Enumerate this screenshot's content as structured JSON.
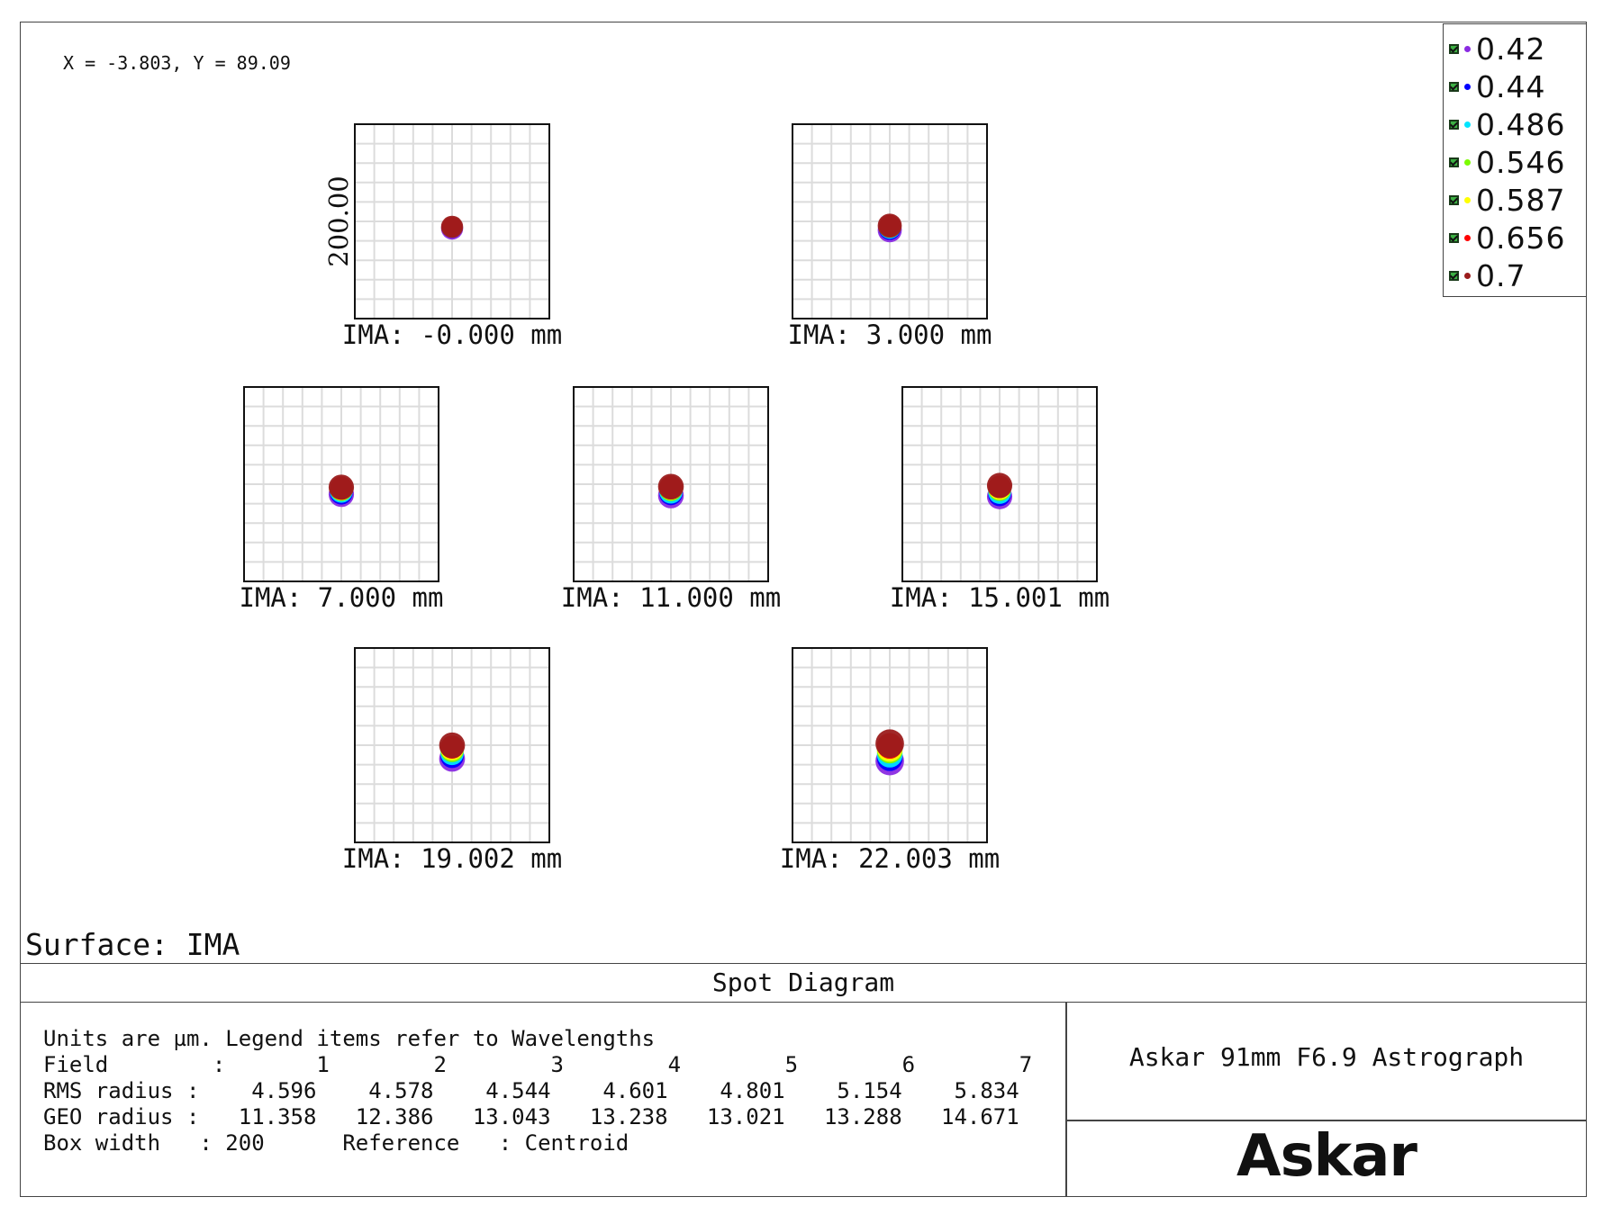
{
  "coord_readout": "X = -3.803, Y = 89.09",
  "surface_label": "Surface: IMA",
  "panel_title": "Spot Diagram",
  "system_name": "Askar 91mm F6.9 Astrograph",
  "logo_text": "Askar",
  "info_lines": [
    "Units are µm. Legend items refer to Wavelengths",
    "Field        :       1        2        3        4        5        6        7",
    "RMS radius :    4.596    4.578    4.544    4.601    4.801    5.154    5.834",
    "GEO radius :   11.358   12.386   13.043   13.238   13.021   13.288   14.671",
    "Box width   : 200      Reference   : Centroid"
  ],
  "legend": [
    {
      "label": "0.42",
      "color": "#8a2be2"
    },
    {
      "label": "0.44",
      "color": "#0000ff"
    },
    {
      "label": "0.486",
      "color": "#00e5ff"
    },
    {
      "label": "0.546",
      "color": "#7cfc00"
    },
    {
      "label": "0.587",
      "color": "#ffff00"
    },
    {
      "label": "0.656",
      "color": "#ff0000"
    },
    {
      "label": "0.7",
      "color": "#9b1c1c"
    }
  ],
  "chart_data": {
    "type": "scatter",
    "title": "Spot Diagram",
    "y_axis_label": "200.00",
    "units": "µm",
    "box_width": 200,
    "reference": "Centroid",
    "surface": "IMA",
    "wavelengths": [
      "0.42",
      "0.44",
      "0.486",
      "0.546",
      "0.587",
      "0.656",
      "0.7"
    ],
    "fields": [
      {
        "field": 1,
        "label": "IMA: -0.000 mm",
        "rms_radius": 4.596,
        "geo_radius": 11.358,
        "spot_offset_y": [
          -3,
          -2,
          -1,
          0,
          0,
          0,
          0
        ]
      },
      {
        "field": 2,
        "label": "IMA: 3.000 mm",
        "rms_radius": 4.578,
        "geo_radius": 12.386,
        "spot_offset_y": [
          -6,
          -4,
          -2,
          0,
          1,
          2,
          2
        ]
      },
      {
        "field": 3,
        "label": "IMA: 7.000 mm",
        "rms_radius": 4.544,
        "geo_radius": 13.043,
        "spot_offset_y": [
          -8,
          -6,
          -3,
          0,
          1,
          3,
          4
        ]
      },
      {
        "field": 4,
        "label": "IMA: 11.000 mm",
        "rms_radius": 4.601,
        "geo_radius": 13.238,
        "spot_offset_y": [
          -10,
          -7,
          -4,
          0,
          2,
          4,
          5
        ]
      },
      {
        "field": 5,
        "label": "IMA: 15.001 mm",
        "rms_radius": 4.801,
        "geo_radius": 13.021,
        "spot_offset_y": [
          -12,
          -9,
          -5,
          0,
          2,
          5,
          7
        ]
      },
      {
        "field": 6,
        "label": "IMA: 19.002 mm",
        "rms_radius": 5.154,
        "geo_radius": 13.288,
        "spot_offset_y": [
          -14,
          -10,
          -5,
          0,
          3,
          6,
          9
        ]
      },
      {
        "field": 7,
        "label": "IMA: 22.003 mm",
        "rms_radius": 5.834,
        "geo_radius": 14.671,
        "spot_offset_y": [
          -18,
          -13,
          -7,
          0,
          3,
          8,
          12
        ]
      }
    ]
  }
}
